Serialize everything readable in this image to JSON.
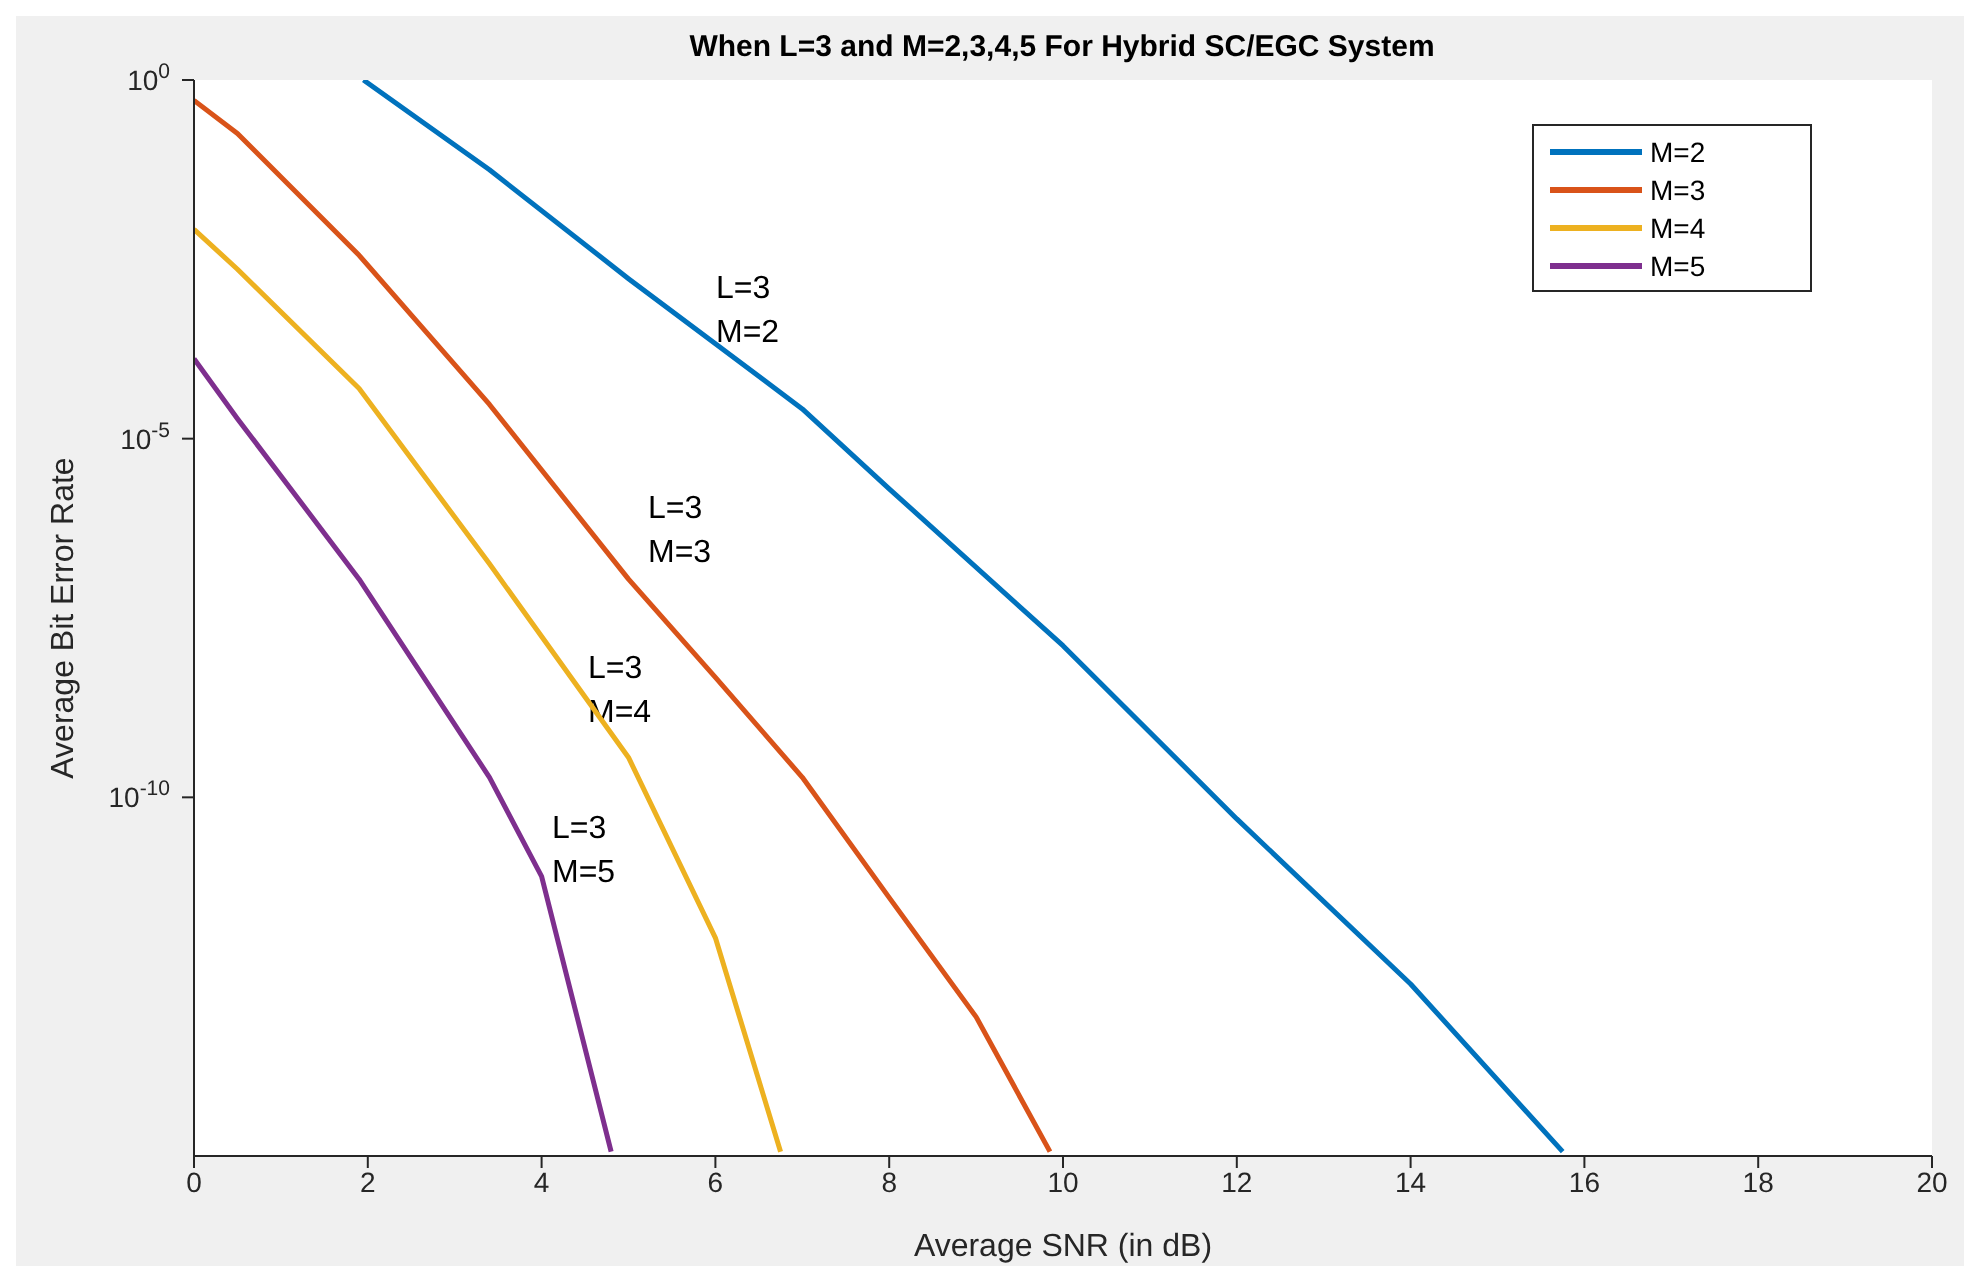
{
  "chart_data": {
    "type": "line",
    "title": "When L=3 and M=2,3,4,5 For Hybrid SC/EGC System",
    "xlabel": "Average SNR (in dB)",
    "ylabel": "Average Bit Error Rate",
    "log": "y",
    "xlim": [
      0,
      20
    ],
    "xticks": [
      0,
      2,
      4,
      6,
      8,
      10,
      12,
      14,
      16,
      18,
      20
    ],
    "ylim": [
      1e-15,
      1
    ],
    "yticks": [
      {
        "value": 1,
        "label": "10$^{0}$"
      },
      {
        "value": 1e-05,
        "label": "10$^{-5}$"
      },
      {
        "value": 1e-10,
        "label": "10$^{-10}$"
      }
    ],
    "grid": false,
    "legend": "top right",
    "marker": "none",
    "line_style": "solid",
    "series": [
      {
        "name": "M=2",
        "color": "#0072bd",
        "x": [
          1.95,
          3.4,
          5,
          6,
          7,
          8,
          10,
          12,
          14,
          15.75
        ],
        "values": [
          1,
          0.056,
          0.0017,
          0.00021,
          2.6e-05,
          2e-06,
          1.3e-08,
          5e-11,
          2.5e-13,
          1.15e-15
        ]
      },
      {
        "name": "M=3",
        "color": "#d95319",
        "x": [
          0,
          0.5,
          1.9,
          3.4,
          5,
          6,
          7,
          8,
          9,
          9.85
        ],
        "values": [
          0.52,
          0.18,
          0.0036,
          3e-05,
          1.1e-07,
          4.7e-09,
          1.9e-10,
          4e-12,
          8.7e-14,
          1.15e-15
        ]
      },
      {
        "name": "M=4",
        "color": "#edb120",
        "x": [
          0,
          0.5,
          1.9,
          3.4,
          5,
          6,
          6.75
        ],
        "values": [
          0.0083,
          0.0023,
          5e-05,
          1.8e-07,
          3.6e-10,
          1.1e-12,
          1.15e-15
        ]
      },
      {
        "name": "M=5",
        "color": "#7e2f8e",
        "x": [
          0,
          0.5,
          1.9,
          3.4,
          4,
          4.8
        ],
        "values": [
          0.00013,
          1.9e-05,
          1.1e-07,
          1.9e-10,
          7.9e-12,
          1.15e-15
        ]
      }
    ],
    "annotations": [
      "L=3\nM=2",
      "L=3\nM=3",
      "L=3\nM=4",
      "L=3\nM=5"
    ]
  }
}
